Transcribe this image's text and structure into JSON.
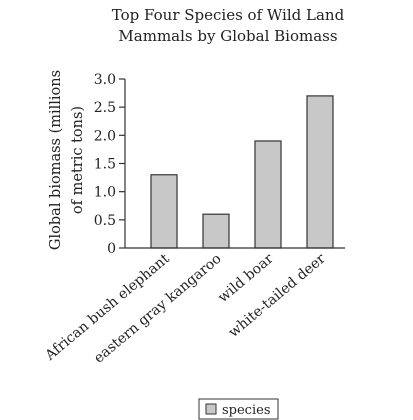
{
  "chart_data": {
    "type": "bar",
    "title_lines": [
      "Top Four Species of Wild Land",
      "Mammals by Global Biomass"
    ],
    "ylabel_lines": [
      "Global biomass (millions",
      "of metric tons)"
    ],
    "xlabel": "",
    "categories": [
      "African bush elephant",
      "eastern gray kangaroo",
      "wild boar",
      "white-tailed deer"
    ],
    "series": [
      {
        "name": "species",
        "values": [
          1.3,
          0.6,
          1.9,
          2.7
        ]
      }
    ],
    "ylim": [
      0,
      3.0
    ],
    "yticks": [
      "0",
      "0.5",
      "1.0",
      "1.5",
      "2.0",
      "2.5",
      "3.0"
    ],
    "grid": false,
    "legend_position": "bottom-center",
    "colors": {
      "bar_fill": "#c8c8c8",
      "bar_stroke": "#333333",
      "axis": "#333333",
      "text": "#222222"
    }
  }
}
